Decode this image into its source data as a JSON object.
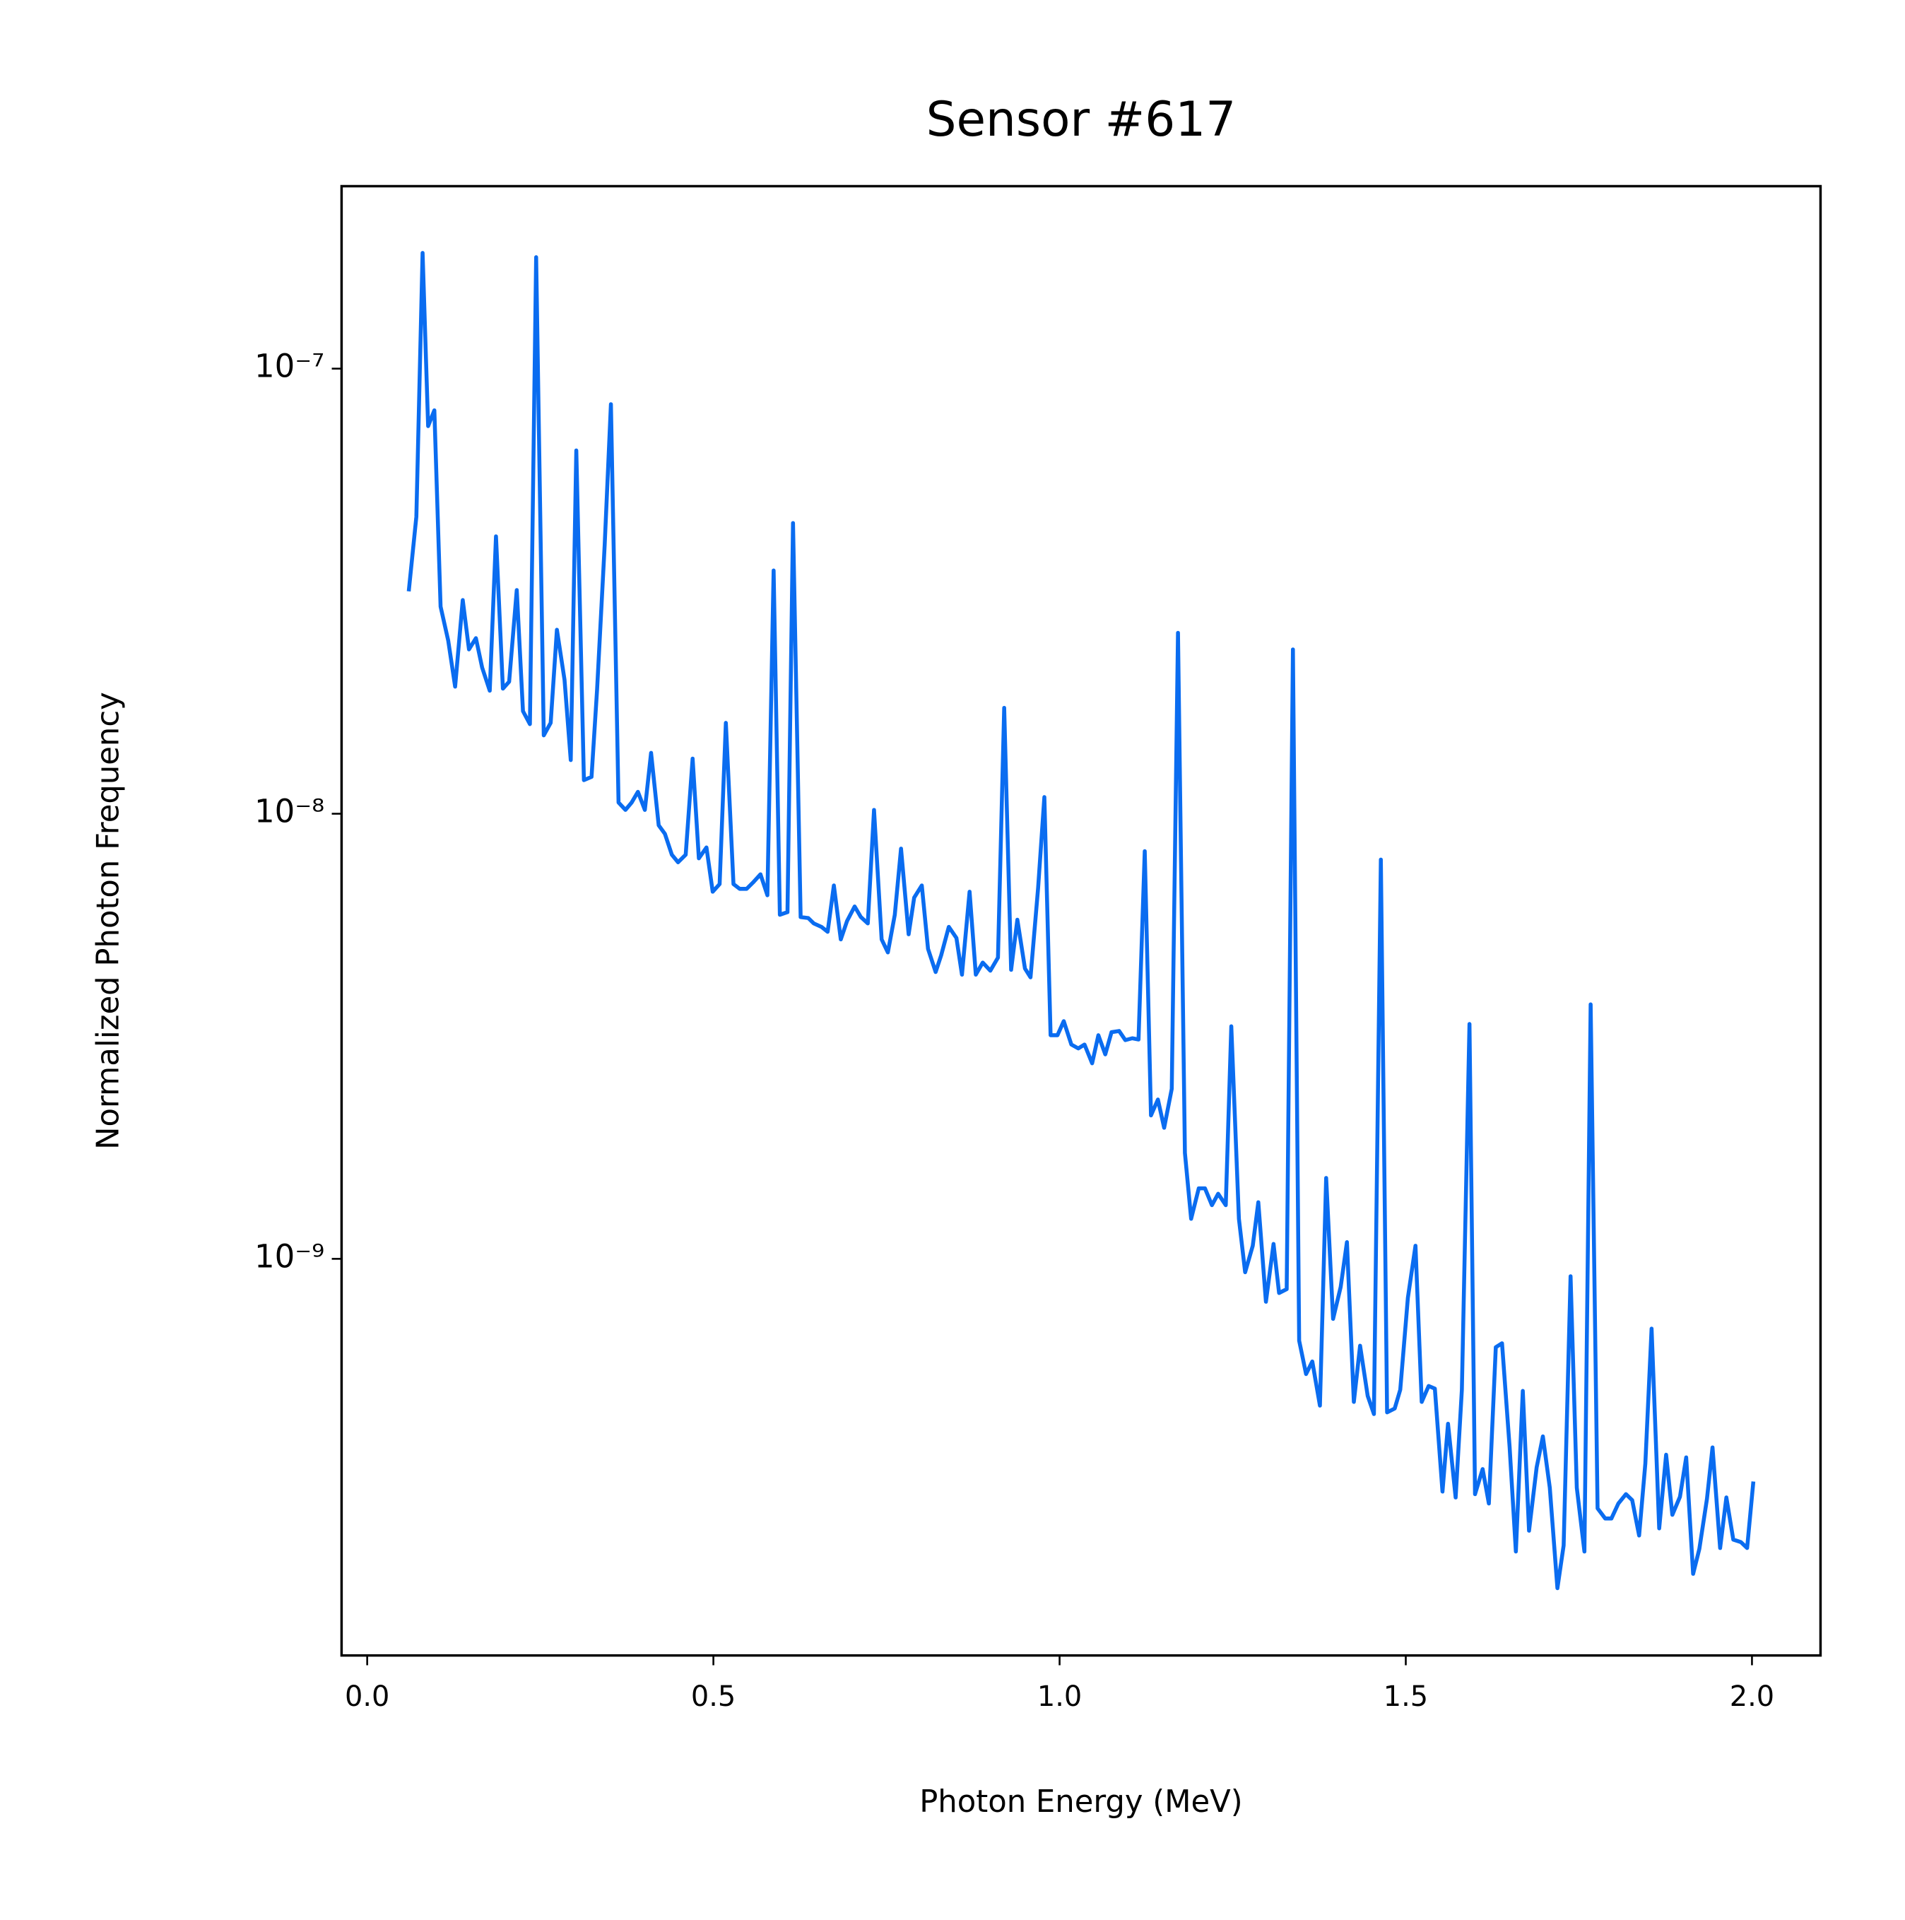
{
  "chart_data": {
    "type": "line",
    "title": "Sensor #617",
    "x_label": "Photon Energy (MeV)",
    "y_label": "Normalized Photon Frequency",
    "yscale": "log",
    "grid": false,
    "xlim": [
      -0.037,
      2.099
    ],
    "ylim": [
      1.285e-10,
      2.57e-07
    ],
    "xticks": [
      {
        "value": 0,
        "label": "0.0"
      },
      0.5,
      {
        "value": 1,
        "label": "1.0"
      },
      1.5,
      {
        "value": 2,
        "label": "2.0"
      }
    ],
    "yticks": [
      {
        "value": 1e-09,
        "label": "10⁻⁹"
      },
      {
        "value": 1e-08,
        "label": "10⁻⁸"
      },
      {
        "value": 1e-07,
        "label": "10⁻⁷"
      }
    ],
    "x": [
      0.06,
      0.071,
      0.08,
      0.088,
      0.097,
      0.106,
      0.117,
      0.127,
      0.138,
      0.147,
      0.157,
      0.166,
      0.177,
      0.186,
      0.196,
      0.205,
      0.216,
      0.225,
      0.235,
      0.244,
      0.255,
      0.265,
      0.274,
      0.285,
      0.294,
      0.302,
      0.313,
      0.324,
      0.332,
      0.343,
      0.352,
      0.363,
      0.373,
      0.382,
      0.391,
      0.401,
      0.41,
      0.421,
      0.43,
      0.44,
      0.449,
      0.46,
      0.47,
      0.479,
      0.49,
      0.499,
      0.509,
      0.518,
      0.529,
      0.538,
      0.548,
      0.557,
      0.568,
      0.578,
      0.587,
      0.596,
      0.607,
      0.615,
      0.626,
      0.637,
      0.645,
      0.656,
      0.665,
      0.674,
      0.684,
      0.693,
      0.704,
      0.713,
      0.723,
      0.732,
      0.743,
      0.752,
      0.762,
      0.771,
      0.782,
      0.79,
      0.801,
      0.81,
      0.821,
      0.829,
      0.84,
      0.851,
      0.859,
      0.87,
      0.879,
      0.889,
      0.9,
      0.911,
      0.92,
      0.93,
      0.939,
      0.95,
      0.958,
      0.969,
      0.978,
      0.987,
      0.997,
      1.006,
      1.017,
      1.027,
      1.036,
      1.047,
      1.056,
      1.066,
      1.075,
      1.086,
      1.095,
      1.105,
      1.114,
      1.123,
      1.132,
      1.142,
      1.151,
      1.162,
      1.171,
      1.181,
      1.19,
      1.201,
      1.21,
      1.22,
      1.229,
      1.24,
      1.248,
      1.259,
      1.268,
      1.279,
      1.287,
      1.298,
      1.309,
      1.317,
      1.328,
      1.337,
      1.346,
      1.356,
      1.365,
      1.376,
      1.385,
      1.395,
      1.406,
      1.415,
      1.425,
      1.434,
      1.445,
      1.454,
      1.464,
      1.473,
      1.484,
      1.492,
      1.503,
      1.514,
      1.523,
      1.533,
      1.542,
      1.553,
      1.561,
      1.572,
      1.581,
      1.592,
      1.6,
      1.611,
      1.62,
      1.63,
      1.639,
      1.65,
      1.659,
      1.669,
      1.678,
      1.689,
      1.698,
      1.708,
      1.719,
      1.728,
      1.738,
      1.747,
      1.758,
      1.767,
      1.777,
      1.788,
      1.797,
      1.807,
      1.818,
      1.827,
      1.837,
      1.846,
      1.855,
      1.866,
      1.876,
      1.885,
      1.896,
      1.905,
      1.915,
      1.924,
      1.935,
      1.943,
      1.954,
      1.963,
      1.973,
      1.984,
      1.993,
      2.002
    ],
    "series": [
      {
        "color": "#0a6cf0",
        "values": [
          3.16e-08,
          4.65e-08,
          1.82e-07,
          7.43e-08,
          8.06e-08,
          2.92e-08,
          2.45e-08,
          1.93e-08,
          3.02e-08,
          2.34e-08,
          2.48e-08,
          2.13e-08,
          1.89e-08,
          4.2e-08,
          1.91e-08,
          1.98e-08,
          3.18e-08,
          1.7e-08,
          1.59e-08,
          1.78e-07,
          1.5e-08,
          1.6e-08,
          2.59e-08,
          2e-08,
          1.32e-08,
          6.55e-08,
          1.19e-08,
          1.21e-08,
          1.9e-08,
          4.02e-08,
          8.32e-08,
          1.06e-08,
          1.02e-08,
          1.06e-08,
          1.12e-08,
          1.02e-08,
          1.37e-08,
          9.42e-09,
          9.01e-09,
          8.09e-09,
          7.78e-09,
          8.09e-09,
          1.33e-08,
          7.94e-09,
          8.4e-09,
          6.68e-09,
          6.95e-09,
          1.6e-08,
          6.95e-09,
          6.78e-09,
          6.78e-09,
          7e-09,
          7.31e-09,
          6.56e-09,
          3.52e-08,
          5.93e-09,
          6.01e-09,
          4.5e-08,
          5.86e-09,
          5.83e-09,
          5.67e-09,
          5.57e-09,
          5.43e-09,
          6.9e-09,
          5.22e-09,
          5.74e-09,
          6.19e-09,
          5.86e-09,
          5.67e-09,
          1.02e-08,
          5.22e-09,
          4.88e-09,
          5.93e-09,
          8.35e-09,
          5.36e-09,
          6.48e-09,
          6.9e-09,
          4.97e-09,
          4.41e-09,
          4.81e-09,
          5.57e-09,
          5.26e-09,
          4.35e-09,
          6.68e-09,
          4.35e-09,
          4.63e-09,
          4.44e-09,
          4.75e-09,
          1.73e-08,
          4.46e-09,
          5.78e-09,
          4.49e-09,
          4.29e-09,
          6.82e-09,
          1.09e-08,
          3.18e-09,
          3.18e-09,
          3.42e-09,
          3.03e-09,
          2.97e-09,
          3.03e-09,
          2.75e-09,
          3.18e-09,
          2.88e-09,
          3.23e-09,
          3.25e-09,
          3.1e-09,
          3.13e-09,
          3.11e-09,
          8.24e-09,
          2.1e-09,
          2.28e-09,
          1.97e-09,
          2.41e-09,
          2.55e-08,
          1.73e-09,
          1.23e-09,
          1.44e-09,
          1.44e-09,
          1.32e-09,
          1.4e-09,
          1.32e-09,
          3.33e-09,
          1.23e-09,
          9.33e-10,
          1.07e-09,
          1.34e-09,
          8.01e-10,
          1.08e-09,
          8.38e-10,
          8.55e-10,
          2.34e-08,
          6.55e-10,
          5.51e-10,
          5.88e-10,
          4.68e-10,
          1.52e-09,
          7.33e-10,
          8.65e-10,
          1.09e-09,
          4.77e-10,
          6.38e-10,
          4.92e-10,
          4.48e-10,
          7.89e-09,
          4.52e-10,
          4.61e-10,
          5.08e-10,
          8.17e-10,
          1.07e-09,
          4.77e-10,
          5.18e-10,
          5.11e-10,
          3e-10,
          4.26e-10,
          2.91e-10,
          5.08e-10,
          3.37e-09,
          2.96e-10,
          3.37e-10,
          2.82e-10,
          6.33e-10,
          6.46e-10,
          3.77e-10,
          2.2e-10,
          5.05e-10,
          2.45e-10,
          3.4e-10,
          3.99e-10,
          3.06e-10,
          1.82e-10,
          2.27e-10,
          9.14e-10,
          3.06e-10,
          2.2e-10,
          3.73e-09,
          2.75e-10,
          2.61e-10,
          2.61e-10,
          2.82e-10,
          2.96e-10,
          2.87e-10,
          2.39e-10,
          3.47e-10,
          6.97e-10,
          2.48e-10,
          3.63e-10,
          2.66e-10,
          2.92e-10,
          3.58e-10,
          1.96e-10,
          2.23e-10,
          2.89e-10,
          3.77e-10,
          2.24e-10,
          2.91e-10,
          2.34e-10,
          2.31e-10,
          2.24e-10,
          3.16e-10
        ]
      }
    ]
  }
}
